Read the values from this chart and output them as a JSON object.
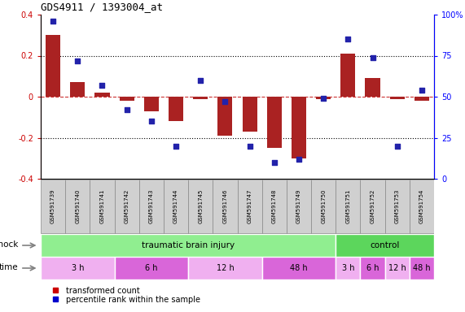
{
  "title": "GDS4911 / 1393004_at",
  "samples": [
    "GSM591739",
    "GSM591740",
    "GSM591741",
    "GSM591742",
    "GSM591743",
    "GSM591744",
    "GSM591745",
    "GSM591746",
    "GSM591747",
    "GSM591748",
    "GSM591749",
    "GSM591750",
    "GSM591751",
    "GSM591752",
    "GSM591753",
    "GSM591754"
  ],
  "red_values": [
    0.3,
    0.07,
    0.02,
    -0.02,
    -0.07,
    -0.12,
    -0.01,
    -0.19,
    -0.17,
    -0.25,
    -0.3,
    -0.01,
    0.21,
    0.09,
    -0.01,
    -0.02
  ],
  "blue_values": [
    96,
    72,
    57,
    42,
    35,
    20,
    60,
    47,
    20,
    10,
    12,
    49,
    85,
    74,
    20,
    54
  ],
  "ylim_left": [
    -0.4,
    0.4
  ],
  "ylim_right": [
    0,
    100
  ],
  "yticks_left": [
    -0.4,
    -0.2,
    0.0,
    0.2,
    0.4
  ],
  "yticks_right": [
    0,
    25,
    50,
    75,
    100
  ],
  "ytick_labels_right": [
    "0",
    "25",
    "50",
    "75",
    "100%"
  ],
  "shock_groups": [
    {
      "label": "traumatic brain injury",
      "start": 0,
      "end": 11,
      "color": "#90ee90"
    },
    {
      "label": "control",
      "start": 12,
      "end": 15,
      "color": "#5cd65c"
    }
  ],
  "time_groups": [
    {
      "label": "3 h",
      "start": 0,
      "end": 2,
      "color": "#f0b0f0"
    },
    {
      "label": "6 h",
      "start": 3,
      "end": 5,
      "color": "#d966d9"
    },
    {
      "label": "12 h",
      "start": 6,
      "end": 8,
      "color": "#f0b0f0"
    },
    {
      "label": "48 h",
      "start": 9,
      "end": 11,
      "color": "#d966d9"
    },
    {
      "label": "3 h",
      "start": 12,
      "end": 12,
      "color": "#f0b0f0"
    },
    {
      "label": "6 h",
      "start": 13,
      "end": 13,
      "color": "#d966d9"
    },
    {
      "label": "12 h",
      "start": 14,
      "end": 14,
      "color": "#f0b0f0"
    },
    {
      "label": "48 h",
      "start": 15,
      "end": 15,
      "color": "#d966d9"
    }
  ],
  "bar_color": "#aa2222",
  "dot_color": "#2222aa",
  "bar_width": 0.6,
  "dot_size": 25,
  "background_color": "#ffffff",
  "legend_items": [
    {
      "label": "transformed count",
      "color": "#cc0000",
      "marker": "s"
    },
    {
      "label": "percentile rank within the sample",
      "color": "#0000cc",
      "marker": "s"
    }
  ],
  "sample_box_color": "#d0d0d0",
  "sample_box_edge": "#888888"
}
